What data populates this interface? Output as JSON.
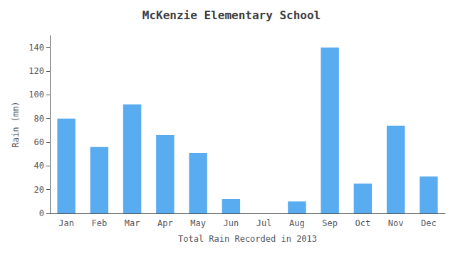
{
  "chart_data": {
    "type": "bar",
    "title": "McKenzie Elementary School",
    "xlabel": "Total Rain Recorded in 2013",
    "ylabel": "Rain (mm)",
    "categories": [
      "Jan",
      "Feb",
      "Mar",
      "Apr",
      "May",
      "Jun",
      "Jul",
      "Aug",
      "Sep",
      "Oct",
      "Nov",
      "Dec"
    ],
    "values": [
      80,
      56,
      92,
      66,
      51,
      12,
      0,
      10,
      140,
      25,
      74,
      31
    ],
    "color": "#5aacf0",
    "ylim": [
      0,
      150
    ],
    "yticks": [
      0,
      20,
      40,
      60,
      80,
      100,
      120,
      140
    ],
    "grid": false
  }
}
